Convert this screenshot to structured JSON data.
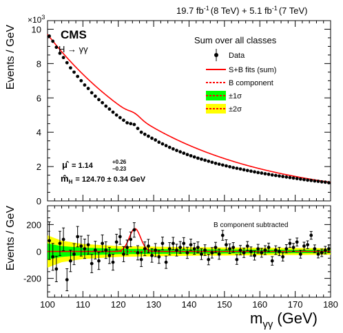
{
  "header": {
    "lumi8_value": "19.7 fb",
    "lumi8_exp": "-1",
    "lumi8_energy": "(8 TeV) + 5.1 fb",
    "lumi7_exp": "-1",
    "lumi7_energy": "(7 TeV)"
  },
  "experiment": "CMS",
  "channel": "H → γγ",
  "legend": {
    "title": "Sum over all classes",
    "data": "Data",
    "sb": "S+B fits (sum)",
    "b": "B component",
    "s1": "±1σ",
    "s2": "±2σ"
  },
  "fit": {
    "mu_lhs": "μ̂",
    "mu_eq": "= 1.14",
    "mu_up": "+0.26",
    "mu_dn": "−0.23",
    "mh_lhs": "m̂",
    "mh_sub": "H",
    "mh_eq": "= 124.70 ± 0.34 GeV"
  },
  "bottom_note": "B component subtracted",
  "colors": {
    "fit": "#ff0000",
    "band1": "#00ff00",
    "band2": "#ffff00",
    "points": "#000000"
  },
  "chart_data": [
    {
      "type": "scatter",
      "xlabel": "m",
      "xlabel_sub": "γγ",
      "xlabel_unit": "(GeV)",
      "ylabel": "Events / GeV",
      "yexponent": "×10",
      "yexponent_power": "3",
      "xlim": [
        100,
        180
      ],
      "ylim": [
        0,
        10.5
      ],
      "xticks": [
        100,
        110,
        120,
        130,
        140,
        150,
        160,
        170,
        180
      ],
      "yticks": [
        0,
        2,
        4,
        6,
        8,
        10
      ],
      "series": [
        {
          "name": "Data",
          "x": [
            100.5,
            101.5,
            102.5,
            103.5,
            104.5,
            105.5,
            106.5,
            107.5,
            108.5,
            109.5,
            110.5,
            111.5,
            112.5,
            113.5,
            114.5,
            115.5,
            116.5,
            117.5,
            118.5,
            119.5,
            120.5,
            121.5,
            122.5,
            123.5,
            124.5,
            125.5,
            126.5,
            127.5,
            128.5,
            129.5,
            130.5,
            131.5,
            132.5,
            133.5,
            134.5,
            135.5,
            136.5,
            137.5,
            138.5,
            139.5,
            140.5,
            141.5,
            142.5,
            143.5,
            144.5,
            145.5,
            146.5,
            147.5,
            148.5,
            149.5,
            150.5,
            151.5,
            152.5,
            153.5,
            154.5,
            155.5,
            156.5,
            157.5,
            158.5,
            159.5,
            160.5,
            161.5,
            162.5,
            163.5,
            164.5,
            165.5,
            166.5,
            167.5,
            168.5,
            169.5,
            170.5,
            171.5,
            172.5,
            173.5,
            174.5,
            175.5,
            176.5,
            177.5,
            178.5,
            179.5
          ],
          "y": [
            9.6,
            9.3,
            8.95,
            8.6,
            8.35,
            8.05,
            7.75,
            7.5,
            7.25,
            7.0,
            6.75,
            6.55,
            6.3,
            6.1,
            5.9,
            5.72,
            5.52,
            5.35,
            5.17,
            5.0,
            4.85,
            4.7,
            4.55,
            4.5,
            4.45,
            4.22,
            4.0,
            3.88,
            3.77,
            3.65,
            3.55,
            3.42,
            3.32,
            3.22,
            3.12,
            3.03,
            2.94,
            2.86,
            2.78,
            2.7,
            2.63,
            2.56,
            2.49,
            2.43,
            2.37,
            2.31,
            2.25,
            2.19,
            2.14,
            2.09,
            2.04,
            1.99,
            1.94,
            1.9,
            1.86,
            1.81,
            1.77,
            1.73,
            1.69,
            1.65,
            1.62,
            1.58,
            1.55,
            1.51,
            1.48,
            1.45,
            1.42,
            1.39,
            1.36,
            1.33,
            1.3,
            1.27,
            1.24,
            1.21,
            1.19,
            1.16,
            1.14,
            1.11,
            1.09,
            1.06
          ]
        }
      ],
      "fit": {
        "name": "S+B fits (sum)",
        "a": 9.7,
        "slope": 0.0274,
        "peak_mass": 124.7,
        "peak_height": 0.17,
        "peak_width": 1.6
      }
    },
    {
      "type": "scatter",
      "title": "B component subtracted",
      "ylabel": "Events / GeV",
      "xlim": [
        100,
        180
      ],
      "ylim": [
        -340,
        340
      ],
      "xticks": [
        100,
        110,
        120,
        130,
        140,
        150,
        160,
        170,
        180
      ],
      "yticks": [
        -200,
        0,
        200
      ],
      "series": [
        {
          "name": "Data",
          "x": [
            100.5,
            101.5,
            102.5,
            103.5,
            104.5,
            105.5,
            106.5,
            107.5,
            108.5,
            109.5,
            110.5,
            111.5,
            112.5,
            113.5,
            114.5,
            115.5,
            116.5,
            117.5,
            118.5,
            119.5,
            120.5,
            121.5,
            122.5,
            123.5,
            124.5,
            125.5,
            126.5,
            127.5,
            128.5,
            129.5,
            130.5,
            131.5,
            132.5,
            133.5,
            134.5,
            135.5,
            136.5,
            137.5,
            138.5,
            139.5,
            140.5,
            141.5,
            142.5,
            143.5,
            144.5,
            145.5,
            146.5,
            147.5,
            148.5,
            149.5,
            150.5,
            151.5,
            152.5,
            153.5,
            154.5,
            155.5,
            156.5,
            157.5,
            158.5,
            159.5,
            160.5,
            161.5,
            162.5,
            163.5,
            164.5,
            165.5,
            166.5,
            167.5,
            168.5,
            169.5,
            170.5,
            171.5,
            172.5,
            173.5,
            174.5,
            175.5,
            176.5,
            177.5,
            178.5,
            179.5
          ],
          "y": [
            80,
            -40,
            -130,
            60,
            90,
            -210,
            -70,
            -20,
            110,
            40,
            20,
            50,
            -90,
            10,
            -70,
            60,
            10,
            -30,
            -80,
            70,
            110,
            -20,
            30,
            90,
            160,
            -10,
            -60,
            20,
            40,
            -30,
            10,
            -40,
            60,
            -80,
            20,
            60,
            10,
            30,
            60,
            -10,
            50,
            20,
            30,
            -20,
            10,
            -60,
            -10,
            30,
            -20,
            120,
            50,
            20,
            30,
            -60,
            10,
            -10,
            40,
            0,
            -30,
            20,
            -10,
            10,
            30,
            -70,
            10,
            0,
            -40,
            20,
            60,
            30,
            70,
            -20,
            40,
            50,
            120,
            20,
            -20,
            -10,
            10,
            20
          ],
          "err": [
            140,
            100,
            95,
            90,
            85,
            82,
            80,
            78,
            76,
            74,
            72,
            70,
            68,
            66,
            64,
            63,
            62,
            60,
            59,
            58,
            57,
            56,
            55,
            55,
            54,
            53,
            52,
            51,
            50,
            50,
            49,
            48,
            47,
            46,
            46,
            45,
            44,
            44,
            43,
            42,
            42,
            41,
            41,
            40,
            40,
            39,
            39,
            38,
            38,
            37,
            37,
            36,
            36,
            36,
            35,
            35,
            34,
            34,
            34,
            33,
            33,
            33,
            32,
            32,
            32,
            31,
            31,
            31,
            30,
            30,
            30,
            30,
            29,
            29,
            29,
            29,
            28,
            28,
            28,
            28
          ]
        }
      ],
      "fit": {
        "name": "S+B fits (sum) − B",
        "peak_mass": 124.7,
        "peak_height": 170,
        "peak_width": 1.6
      },
      "band1_halfwidth": {
        "x": [
          100,
          104,
          110,
          120,
          140,
          160,
          180
        ],
        "y": [
          60,
          40,
          28,
          20,
          16,
          14,
          12
        ]
      },
      "band2_halfwidth": {
        "x": [
          100,
          104,
          110,
          120,
          140,
          160,
          180
        ],
        "y": [
          120,
          80,
          56,
          40,
          32,
          28,
          24
        ]
      }
    }
  ]
}
